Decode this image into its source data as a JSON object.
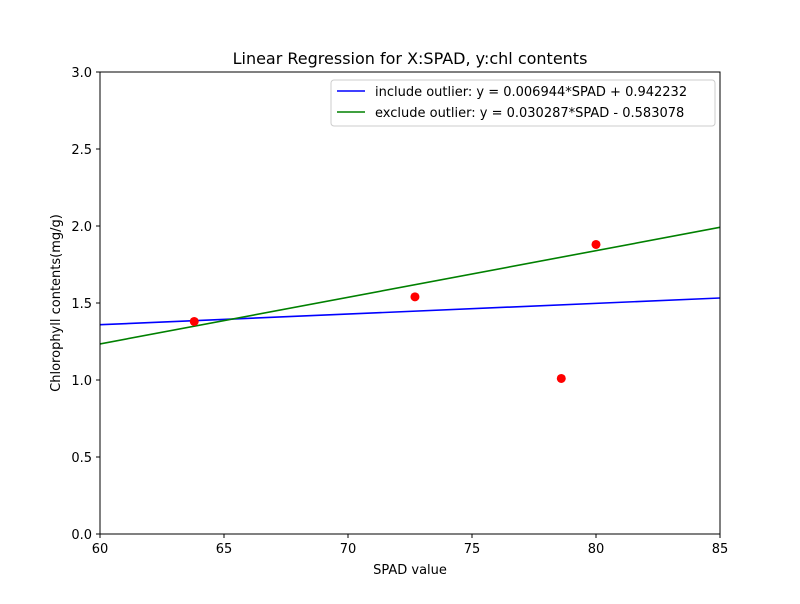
{
  "chart_data": {
    "type": "scatter",
    "title": "Linear Regression for X:SPAD, y:chl contents",
    "xlabel": "SPAD value",
    "ylabel": "Chlorophyll contents(mg/g)",
    "xlim": [
      60,
      85
    ],
    "ylim": [
      0,
      3.0
    ],
    "xticks": [
      60,
      65,
      70,
      75,
      80,
      85
    ],
    "xtick_labels": [
      "60",
      "65",
      "70",
      "75",
      "80",
      "85"
    ],
    "yticks": [
      0,
      0.5,
      1.0,
      1.5,
      2.0,
      2.5,
      3.0
    ],
    "ytick_labels": [
      "0.0",
      "0.5",
      "1.0",
      "1.5",
      "2.0",
      "2.5",
      "3.0"
    ],
    "grid": false,
    "legend_position": "top-right",
    "points": {
      "color": "#ff0000",
      "x": [
        63.8,
        72.7,
        78.6,
        80.0
      ],
      "y": [
        1.38,
        1.54,
        1.01,
        1.88
      ]
    },
    "lines": [
      {
        "name": "include outlier: y = 0.006944*SPAD + 0.942232",
        "slope": 0.006944,
        "intercept": 0.942232,
        "color": "#0000ff"
      },
      {
        "name": "exclude outlier: y = 0.030287*SPAD - 0.583078",
        "slope": 0.030287,
        "intercept": -0.583078,
        "color": "#008000"
      }
    ]
  }
}
